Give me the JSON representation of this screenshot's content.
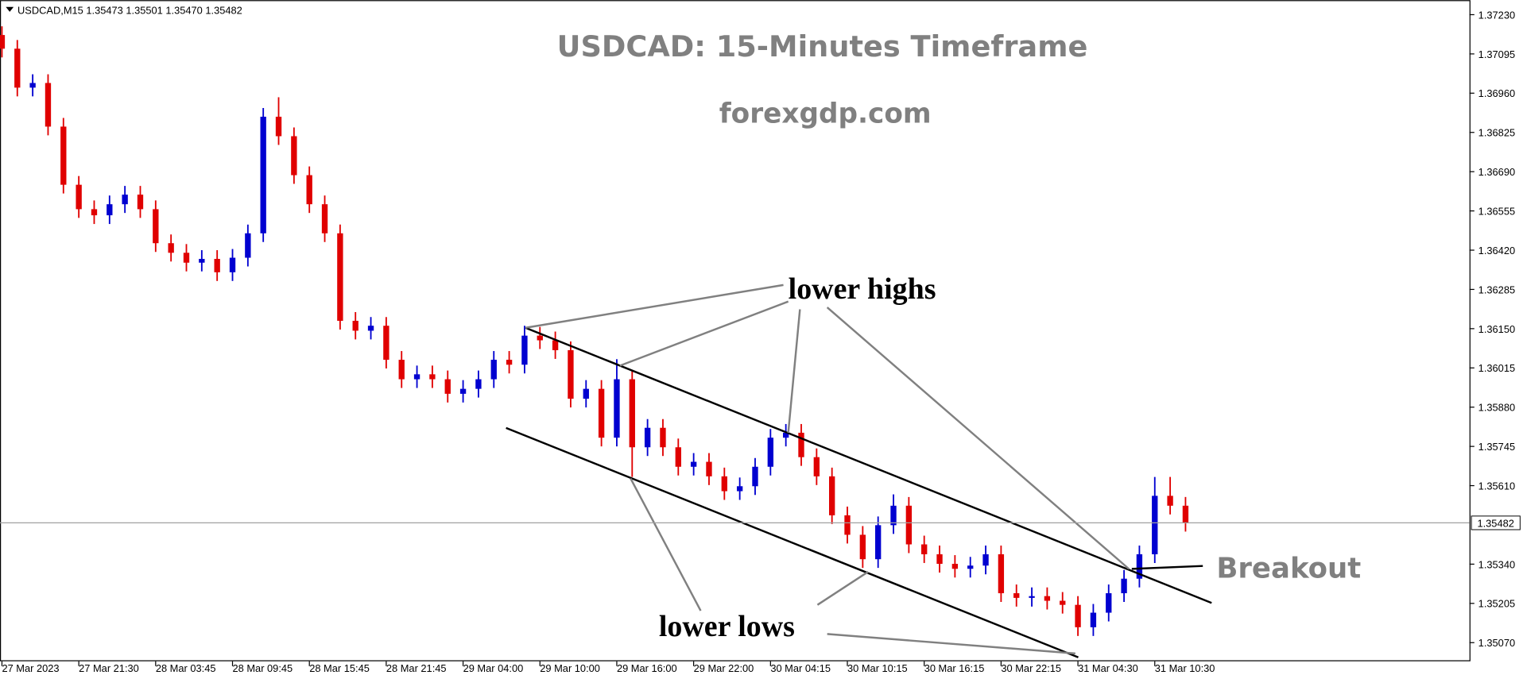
{
  "chart_data": {
    "type": "candlestick",
    "symbol_info": "USDCAD,M15  1.35473 1.35501 1.35470 1.35482",
    "title": "USDCAD: 15-Minutes Timeframe",
    "subtitle": "forexgdp.com",
    "annotations": [
      "lower highs",
      "lower lows",
      "Breakout"
    ],
    "colors": {
      "up": "#0000d0",
      "down": "#e00000"
    },
    "xlim": [
      0,
      478
    ],
    "ylim": [
      1.35006,
      1.3728
    ],
    "xticks": [
      {
        "value": 0,
        "label": "27 Mar 2023"
      },
      {
        "value": 25,
        "label": "27 Mar 21:30"
      },
      {
        "value": 50,
        "label": "28 Mar 03:45"
      },
      {
        "value": 75,
        "label": "28 Mar 09:45"
      },
      {
        "value": 100,
        "label": "28 Mar 15:45"
      },
      {
        "value": 125,
        "label": "28 Mar 21:45"
      },
      {
        "value": 150,
        "label": "29 Mar 04:00"
      },
      {
        "value": 175,
        "label": "29 Mar 10:00"
      },
      {
        "value": 200,
        "label": "29 Mar 16:00"
      },
      {
        "value": 225,
        "label": "29 Mar 22:00"
      },
      {
        "value": 250,
        "label": "30 Mar 04:15"
      },
      {
        "value": 275,
        "label": "30 Mar 10:15"
      },
      {
        "value": 300,
        "label": "30 Mar 16:15"
      },
      {
        "value": 325,
        "label": "30 Mar 22:15"
      },
      {
        "value": 350,
        "label": "31 Mar 04:30"
      },
      {
        "value": 375,
        "label": "31 Mar 10:30"
      }
    ],
    "yticks": [
      {
        "value": 1.3723,
        "label": "1.37230"
      },
      1.37095,
      {
        "value": 1.3696,
        "label": "1.36960"
      },
      1.36825,
      {
        "value": 1.3669,
        "label": "1.36690"
      },
      1.36555,
      {
        "value": 1.3642,
        "label": "1.36420"
      },
      1.36285,
      {
        "value": 1.3615,
        "label": "1.36150"
      },
      1.36015,
      {
        "value": 1.3588,
        "label": "1.35880"
      },
      1.35745,
      {
        "value": 1.3561,
        "label": "1.35610"
      },
      {
        "value": 1.3534,
        "label": "1.35340"
      },
      1.35205,
      {
        "value": 1.3507,
        "label": "1.35070"
      }
    ],
    "last_price": 1.35482,
    "x": [
      0,
      5,
      10,
      15,
      20,
      25,
      30,
      35,
      40,
      45,
      50,
      55,
      60,
      65,
      70,
      75,
      80,
      85,
      90,
      95,
      100,
      105,
      110,
      115,
      120,
      125,
      130,
      135,
      140,
      145,
      150,
      155,
      160,
      165,
      170,
      175,
      180,
      185,
      190,
      195,
      200,
      205,
      210,
      215,
      220,
      225,
      230,
      235,
      240,
      245,
      250,
      255,
      260,
      265,
      270,
      275,
      280,
      285,
      290,
      295,
      300,
      305,
      310,
      315,
      320,
      325,
      330,
      335,
      340,
      345,
      350,
      355,
      360,
      365,
      370,
      375,
      380,
      385
    ],
    "open": [
      1.3716,
      1.37113,
      1.36979,
      1.36995,
      1.36845,
      1.36645,
      1.36561,
      1.3654,
      1.36578,
      1.36611,
      1.36561,
      1.36444,
      1.36411,
      1.36377,
      1.3639,
      1.36344,
      1.36394,
      1.36478,
      1.36879,
      1.36812,
      1.36678,
      1.36578,
      1.36478,
      1.36177,
      1.36143,
      1.3616,
      1.36043,
      1.35976,
      1.35993,
      1.35976,
      1.35926,
      1.35943,
      1.35976,
      1.36043,
      1.36026,
      1.36126,
      1.3611,
      1.36076,
      1.35909,
      1.35943,
      1.35775,
      1.35976,
      1.35742,
      1.35809,
      1.35742,
      1.35675,
      1.35692,
      1.35642,
      1.35591,
      1.35608,
      1.35675,
      1.35775,
      1.35792,
      1.35708,
      1.35642,
      1.35508,
      1.35441,
      1.35357,
      1.35474,
      1.35541,
      1.35408,
      1.35374,
      1.35341,
      1.35324,
      1.35335,
      1.35374,
      1.3524,
      1.35224,
      1.3523,
      1.35214,
      1.352,
      1.35123,
      1.35173,
      1.3524,
      1.3529,
      1.35374,
      1.35575,
      1.35541
    ],
    "high": [
      1.3719,
      1.37143,
      1.37025,
      1.37025,
      1.36875,
      1.36675,
      1.36591,
      1.36608,
      1.36641,
      1.36641,
      1.36591,
      1.36474,
      1.36441,
      1.3642,
      1.3642,
      1.36424,
      1.36508,
      1.36909,
      1.36946,
      1.36842,
      1.36708,
      1.36608,
      1.36508,
      1.36207,
      1.3619,
      1.3619,
      1.36073,
      1.36023,
      1.36023,
      1.36006,
      1.35973,
      1.36006,
      1.36073,
      1.36073,
      1.3616,
      1.36156,
      1.3614,
      1.36106,
      1.35973,
      1.35973,
      1.36045,
      1.36006,
      1.35839,
      1.35839,
      1.35772,
      1.35722,
      1.35722,
      1.35672,
      1.35638,
      1.35705,
      1.35805,
      1.35822,
      1.35822,
      1.35738,
      1.35672,
      1.35538,
      1.35471,
      1.35504,
      1.3558,
      1.35571,
      1.35438,
      1.35404,
      1.35371,
      1.35365,
      1.35404,
      1.35404,
      1.3527,
      1.3526,
      1.3526,
      1.35244,
      1.3523,
      1.35203,
      1.3527,
      1.3532,
      1.35404,
      1.3564,
      1.3564,
      1.35571
    ],
    "low": [
      1.37083,
      1.36949,
      1.36949,
      1.36815,
      1.36615,
      1.36531,
      1.3651,
      1.3651,
      1.36548,
      1.36531,
      1.36414,
      1.36381,
      1.36347,
      1.36347,
      1.36314,
      1.36314,
      1.36364,
      1.36448,
      1.36782,
      1.36648,
      1.36548,
      1.36448,
      1.36147,
      1.36113,
      1.36113,
      1.36013,
      1.35946,
      1.35946,
      1.35946,
      1.35896,
      1.35896,
      1.35913,
      1.35946,
      1.35996,
      1.35996,
      1.3608,
      1.36046,
      1.35879,
      1.35879,
      1.35745,
      1.35745,
      1.3564,
      1.35712,
      1.35712,
      1.35645,
      1.35645,
      1.35612,
      1.35561,
      1.35561,
      1.35578,
      1.35645,
      1.35745,
      1.35678,
      1.35612,
      1.35478,
      1.35411,
      1.35327,
      1.35327,
      1.35444,
      1.35378,
      1.35344,
      1.35311,
      1.35294,
      1.35294,
      1.35305,
      1.3521,
      1.35194,
      1.35194,
      1.35184,
      1.3517,
      1.35093,
      1.35093,
      1.35143,
      1.3521,
      1.3526,
      1.35344,
      1.35511,
      1.35452
    ],
    "close": [
      1.37113,
      1.36979,
      1.36995,
      1.36845,
      1.36645,
      1.36561,
      1.3654,
      1.36578,
      1.36611,
      1.36561,
      1.36444,
      1.36411,
      1.36377,
      1.3639,
      1.36344,
      1.36394,
      1.36478,
      1.36879,
      1.36812,
      1.36678,
      1.36578,
      1.36478,
      1.36177,
      1.36143,
      1.3616,
      1.36043,
      1.35976,
      1.35993,
      1.35976,
      1.35926,
      1.35943,
      1.35976,
      1.36043,
      1.36026,
      1.36126,
      1.3611,
      1.36076,
      1.35909,
      1.35943,
      1.35775,
      1.35976,
      1.35742,
      1.35809,
      1.35742,
      1.35675,
      1.35692,
      1.35642,
      1.35591,
      1.35608,
      1.35675,
      1.35775,
      1.35792,
      1.35708,
      1.35642,
      1.35508,
      1.35441,
      1.35357,
      1.35474,
      1.35541,
      1.35408,
      1.35374,
      1.35341,
      1.35324,
      1.35335,
      1.35374,
      1.3524,
      1.35224,
      1.3523,
      1.35214,
      1.352,
      1.35123,
      1.35173,
      1.3524,
      1.3529,
      1.35374,
      1.35575,
      1.35541,
      1.35482
    ]
  }
}
